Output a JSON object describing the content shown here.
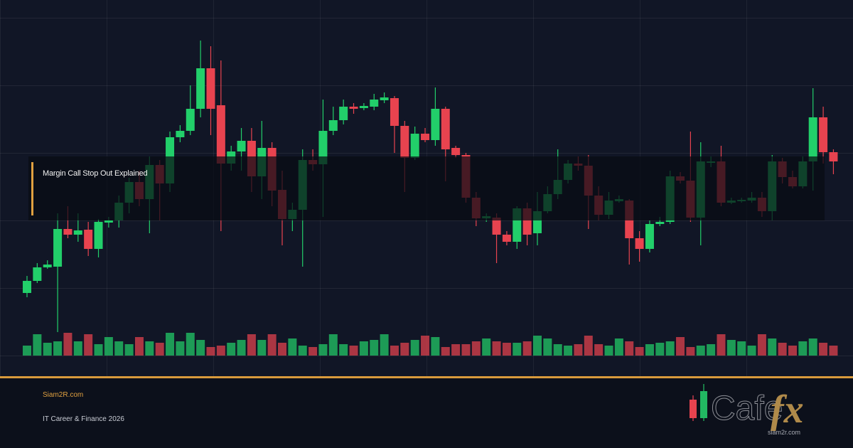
{
  "chart_data": {
    "type": "candlestick",
    "candles": {
      "open": [
        88,
        105,
        124,
        125,
        178,
        170,
        177,
        150,
        187,
        190,
        215,
        244,
        220,
        268,
        242,
        307,
        316,
        347,
        404,
        352,
        270,
        287,
        302,
        252,
        292,
        233,
        192,
        205,
        275,
        269,
        316,
        331,
        350,
        348,
        350,
        359,
        362,
        323,
        278,
        312,
        303,
        347,
        292,
        282,
        222,
        193,
        194,
        170,
        160,
        207,
        172,
        203,
        227,
        247,
        270,
        267,
        225,
        198,
        217,
        218,
        165,
        150,
        185,
        188,
        252,
        246,
        194,
        271,
        273,
        215,
        217,
        218,
        222,
        203,
        273,
        251,
        238,
        273,
        335,
        286
      ],
      "high": [
        112,
        130,
        134,
        200,
        210,
        200,
        188,
        192,
        195,
        225,
        250,
        260,
        280,
        275,
        315,
        324,
        380,
        443,
        435,
        415,
        295,
        320,
        320,
        330,
        300,
        260,
        215,
        290,
        290,
        360,
        350,
        360,
        355,
        355,
        368,
        370,
        365,
        330,
        322,
        320,
        377,
        350,
        295,
        285,
        230,
        200,
        200,
        175,
        210,
        215,
        230,
        238,
        290,
        275,
        280,
        282,
        238,
        230,
        225,
        220,
        175,
        190,
        195,
        260,
        258,
        315,
        300,
        280,
        295,
        222,
        222,
        230,
        230,
        282,
        278,
        260,
        280,
        376,
        350,
        290
      ],
      "low": [
        82,
        102,
        122,
        33,
        165,
        160,
        140,
        138,
        180,
        180,
        200,
        210,
        172,
        190,
        230,
        300,
        310,
        335,
        310,
        175,
        260,
        260,
        230,
        220,
        210,
        155,
        175,
        125,
        260,
        195,
        310,
        325,
        340,
        345,
        345,
        355,
        285,
        230,
        275,
        300,
        295,
        245,
        278,
        215,
        182,
        188,
        130,
        155,
        150,
        155,
        155,
        200,
        220,
        242,
        260,
        178,
        190,
        192,
        215,
        128,
        132,
        145,
        182,
        185,
        242,
        188,
        155,
        265,
        210,
        213,
        215,
        215,
        195,
        190,
        242,
        235,
        235,
        232,
        270,
        255
      ],
      "close": [
        105,
        124,
        128,
        178,
        170,
        176,
        150,
        188,
        190,
        215,
        244,
        220,
        268,
        242,
        307,
        316,
        347,
        404,
        347,
        270,
        287,
        302,
        252,
        292,
        232,
        192,
        205,
        275,
        269,
        316,
        331,
        350,
        347,
        351,
        360,
        363,
        323,
        278,
        312,
        303,
        347,
        290,
        282,
        222,
        193,
        196,
        170,
        160,
        207,
        170,
        203,
        227,
        247,
        270,
        267,
        225,
        198,
        218,
        220,
        165,
        150,
        185,
        188,
        252,
        246,
        194,
        273,
        273,
        215,
        218,
        219,
        222,
        203,
        273,
        251,
        238,
        273,
        335,
        286,
        273
      ]
    },
    "volume": [
      14,
      30,
      18,
      20,
      32,
      20,
      30,
      16,
      26,
      20,
      16,
      26,
      20,
      18,
      32,
      20,
      32,
      22,
      12,
      14,
      18,
      22,
      30,
      22,
      30,
      18,
      24,
      14,
      12,
      16,
      30,
      16,
      14,
      20,
      22,
      30,
      14,
      18,
      22,
      28,
      26,
      12,
      16,
      16,
      20,
      24,
      20,
      18,
      18,
      20,
      28,
      24,
      16,
      14,
      16,
      28,
      16,
      14,
      24,
      20,
      12,
      16,
      18,
      20,
      26,
      12,
      14,
      16,
      30,
      22,
      20,
      14,
      30,
      24,
      18,
      14,
      20,
      24,
      18,
      14
    ],
    "ylim": [
      0,
      500
    ],
    "volume_ylim": [
      0,
      100
    ],
    "up_color": "#22cf6a",
    "down_color": "#e8434f"
  },
  "overlay": {
    "title": "Margin Call Stop Out Explained"
  },
  "footer": {
    "site": "Siam2R.com",
    "tagline": "IT Career & Finance 2026",
    "logo": {
      "text": "Cafe",
      "accent": "fx",
      "url": "siam2r.com"
    }
  }
}
